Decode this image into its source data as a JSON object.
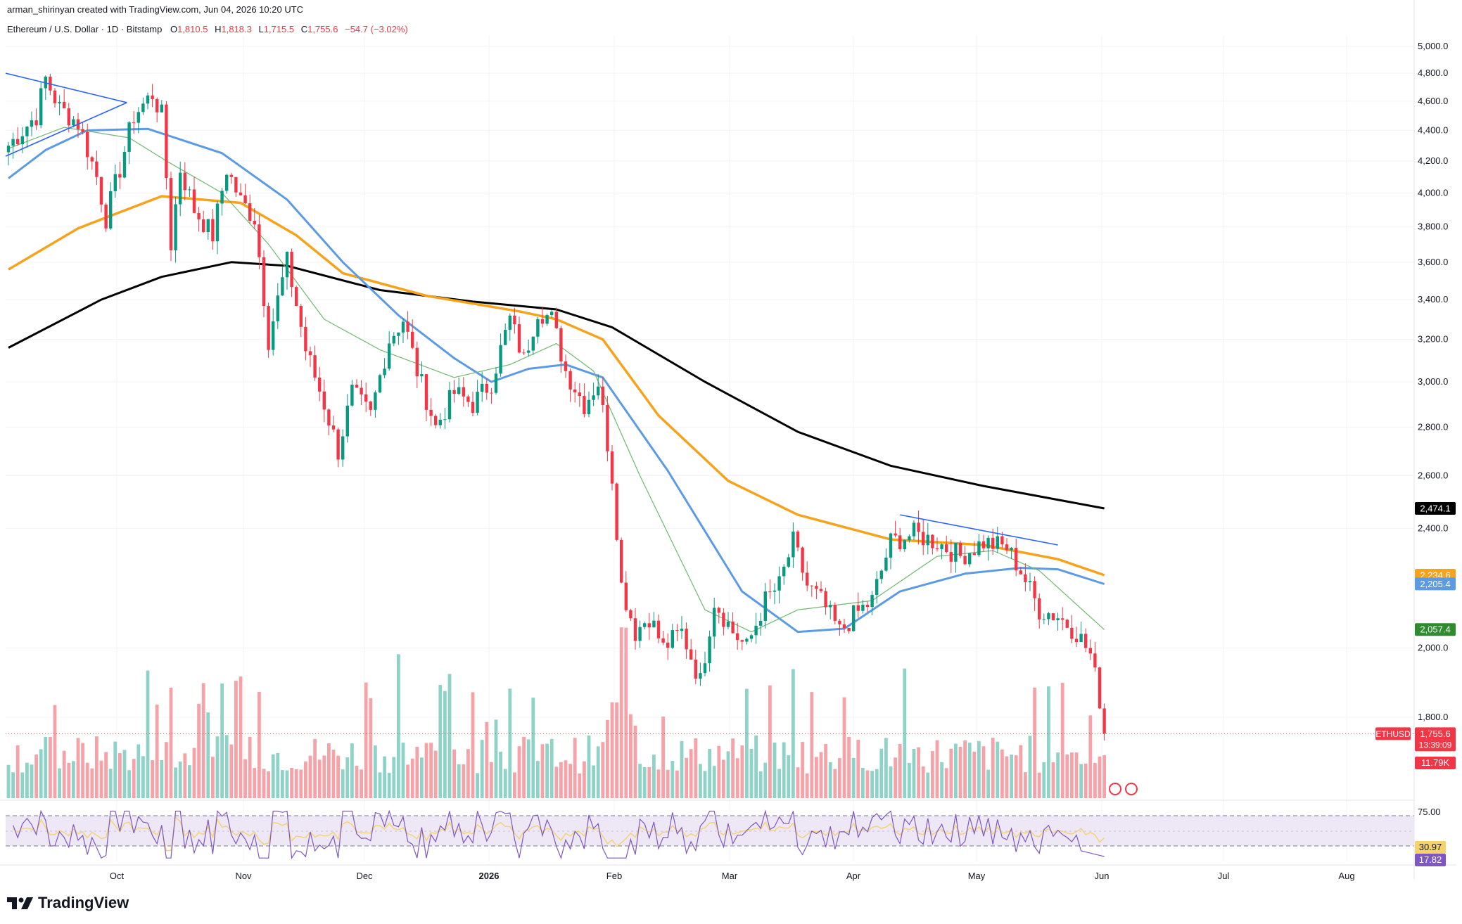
{
  "header": {
    "credit": "arman_shirinyan created with TradingView.com, Jun 04, 2026 10:20 UTC",
    "symbol": "Ethereum / U.S. Dollar · 1D · Bitstamp",
    "ohlc": [
      {
        "label": "O",
        "value": "1,810.5"
      },
      {
        "label": "H",
        "value": "1,818.3"
      },
      {
        "label": "L",
        "value": "1,715.5"
      },
      {
        "label": "C",
        "value": "1,755.6"
      },
      {
        "label": "",
        "value": "−54.7 (−3.02%)"
      }
    ]
  },
  "brand": {
    "name": "TradingView"
  },
  "colors": {
    "up": "#089981",
    "down": "#f23645",
    "vol_up": "#8fd3c8",
    "vol_down": "#f5a3a9",
    "ma_black": "#000000",
    "ma_orange": "#f7a21b",
    "ma_blue": "#5b9be6",
    "ma_green": "#6fb86f",
    "rsi_line": "#7e57c2",
    "rsi_ma": "#f5d36a",
    "rsi_band": "#ede7f6"
  },
  "chart_data": {
    "type": "candlestick",
    "x_labels": [
      "Oct",
      "Nov",
      "Dec",
      "2026",
      "Feb",
      "Mar",
      "Apr",
      "May",
      "Jun",
      "Jul",
      "Aug"
    ],
    "y_ticks": [
      "5,000.0",
      "4,800.0",
      "4,600.0",
      "4,400.0",
      "4,200.0",
      "4,000.0",
      "3,800.0",
      "3,600.0",
      "3,400.0",
      "3,200.0",
      "3,000.0",
      "2,800.0",
      "2,600.0",
      "2,400.0",
      "2,000.0",
      "1,800.0"
    ],
    "ylim": [
      1560,
      5080
    ],
    "anchors": [
      {
        "t": 0,
        "p": 4300
      },
      {
        "t": 6,
        "p": 4500
      },
      {
        "t": 8,
        "p": 4760
      },
      {
        "t": 11,
        "p": 4550
      },
      {
        "t": 15,
        "p": 4450
      },
      {
        "t": 19,
        "p": 4100
      },
      {
        "t": 21,
        "p": 3850
      },
      {
        "t": 24,
        "p": 4150
      },
      {
        "t": 27,
        "p": 4500
      },
      {
        "t": 31,
        "p": 4650
      },
      {
        "t": 33,
        "p": 4500
      },
      {
        "t": 35,
        "p": 3700
      },
      {
        "t": 37,
        "p": 4150
      },
      {
        "t": 40,
        "p": 3900
      },
      {
        "t": 44,
        "p": 3750
      },
      {
        "t": 47,
        "p": 4150
      },
      {
        "t": 50,
        "p": 3950
      },
      {
        "t": 53,
        "p": 3850
      },
      {
        "t": 56,
        "p": 3200
      },
      {
        "t": 60,
        "p": 3600
      },
      {
        "t": 64,
        "p": 3150
      },
      {
        "t": 68,
        "p": 2900
      },
      {
        "t": 71,
        "p": 2700
      },
      {
        "t": 74,
        "p": 2950
      },
      {
        "t": 78,
        "p": 2850
      },
      {
        "t": 82,
        "p": 3200
      },
      {
        "t": 85,
        "p": 3300
      },
      {
        "t": 88,
        "p": 3050
      },
      {
        "t": 92,
        "p": 2800
      },
      {
        "t": 96,
        "p": 2950
      },
      {
        "t": 100,
        "p": 2900
      },
      {
        "t": 104,
        "p": 3000
      },
      {
        "t": 108,
        "p": 3300
      },
      {
        "t": 111,
        "p": 3100
      },
      {
        "t": 114,
        "p": 3350
      },
      {
        "t": 117,
        "p": 3300
      },
      {
        "t": 120,
        "p": 3050
      },
      {
        "t": 124,
        "p": 2900
      },
      {
        "t": 127,
        "p": 3000
      },
      {
        "t": 130,
        "p": 2600
      },
      {
        "t": 132,
        "p": 2200
      },
      {
        "t": 135,
        "p": 2050
      },
      {
        "t": 138,
        "p": 2100
      },
      {
        "t": 141,
        "p": 2000
      },
      {
        "t": 145,
        "p": 2050
      },
      {
        "t": 149,
        "p": 1900
      },
      {
        "t": 152,
        "p": 2150
      },
      {
        "t": 156,
        "p": 2050
      },
      {
        "t": 159,
        "p": 2000
      },
      {
        "t": 163,
        "p": 2150
      },
      {
        "t": 166,
        "p": 2200
      },
      {
        "t": 169,
        "p": 2350
      },
      {
        "t": 172,
        "p": 2200
      },
      {
        "t": 175,
        "p": 2150
      },
      {
        "t": 179,
        "p": 2050
      },
      {
        "t": 182,
        "p": 2100
      },
      {
        "t": 186,
        "p": 2150
      },
      {
        "t": 190,
        "p": 2350
      },
      {
        "t": 195,
        "p": 2380
      },
      {
        "t": 200,
        "p": 2350
      },
      {
        "t": 205,
        "p": 2300
      },
      {
        "t": 210,
        "p": 2350
      },
      {
        "t": 215,
        "p": 2330
      },
      {
        "t": 218,
        "p": 2250
      },
      {
        "t": 222,
        "p": 2120
      },
      {
        "t": 226,
        "p": 2100
      },
      {
        "t": 230,
        "p": 2050
      },
      {
        "t": 233,
        "p": 1980
      },
      {
        "t": 235,
        "p": 1850
      },
      {
        "t": 236,
        "p": 1756
      }
    ],
    "moving_averages": [
      {
        "color_key": "ma_black",
        "width": 3,
        "points": [
          [
            0,
            3160
          ],
          [
            20,
            3400
          ],
          [
            33,
            3520
          ],
          [
            48,
            3600
          ],
          [
            60,
            3580
          ],
          [
            80,
            3450
          ],
          [
            100,
            3390
          ],
          [
            118,
            3350
          ],
          [
            130,
            3260
          ],
          [
            150,
            3000
          ],
          [
            170,
            2780
          ],
          [
            190,
            2640
          ],
          [
            210,
            2560
          ],
          [
            236,
            2474
          ]
        ]
      },
      {
        "color_key": "ma_orange",
        "width": 3.5,
        "points": [
          [
            0,
            3560
          ],
          [
            15,
            3790
          ],
          [
            33,
            3980
          ],
          [
            50,
            3940
          ],
          [
            62,
            3750
          ],
          [
            72,
            3540
          ],
          [
            90,
            3420
          ],
          [
            110,
            3340
          ],
          [
            118,
            3300
          ],
          [
            128,
            3200
          ],
          [
            140,
            2850
          ],
          [
            155,
            2580
          ],
          [
            170,
            2450
          ],
          [
            190,
            2360
          ],
          [
            210,
            2340
          ],
          [
            226,
            2290
          ],
          [
            236,
            2235
          ]
        ]
      },
      {
        "color_key": "ma_blue",
        "width": 3,
        "points": [
          [
            0,
            4090
          ],
          [
            8,
            4270
          ],
          [
            17,
            4400
          ],
          [
            30,
            4410
          ],
          [
            46,
            4250
          ],
          [
            60,
            3960
          ],
          [
            72,
            3600
          ],
          [
            84,
            3320
          ],
          [
            96,
            3110
          ],
          [
            104,
            3000
          ],
          [
            112,
            3060
          ],
          [
            120,
            3080
          ],
          [
            128,
            3020
          ],
          [
            142,
            2620
          ],
          [
            158,
            2180
          ],
          [
            170,
            2050
          ],
          [
            180,
            2060
          ],
          [
            192,
            2180
          ],
          [
            206,
            2240
          ],
          [
            218,
            2260
          ],
          [
            226,
            2255
          ],
          [
            236,
            2205
          ]
        ]
      },
      {
        "color_key": "ma_green",
        "width": 1.2,
        "points": [
          [
            0,
            4280
          ],
          [
            12,
            4420
          ],
          [
            26,
            4350
          ],
          [
            34,
            4200
          ],
          [
            46,
            4000
          ],
          [
            56,
            3700
          ],
          [
            68,
            3300
          ],
          [
            80,
            3150
          ],
          [
            96,
            3020
          ],
          [
            108,
            3080
          ],
          [
            118,
            3180
          ],
          [
            126,
            3050
          ],
          [
            136,
            2600
          ],
          [
            150,
            2120
          ],
          [
            160,
            2050
          ],
          [
            170,
            2120
          ],
          [
            186,
            2150
          ],
          [
            200,
            2300
          ],
          [
            212,
            2320
          ],
          [
            222,
            2250
          ],
          [
            236,
            2057
          ]
        ]
      }
    ],
    "price_labels": [
      {
        "text": "2,474.1",
        "bg": "#000000",
        "y": 2474.1
      },
      {
        "text": "2,234.6",
        "bg": "#f7a21b",
        "y": 2234.6
      },
      {
        "text": "2,205.4",
        "bg": "#5b9be6",
        "y": 2205.4
      },
      {
        "text": "2,057.4",
        "bg": "#2e8b2e",
        "y": 2057.4
      }
    ],
    "last_price": {
      "symbol": "ETHUSD",
      "text": "1,755.6",
      "countdown": "13:39:09",
      "y": 1755.6
    },
    "volume_label": "11.79K",
    "rsi": {
      "ticks": [
        "75.00"
      ],
      "upper": 70,
      "lower": 30,
      "value_ma": "30.97",
      "value": "17.82"
    },
    "triangle_lines": [
      [
        [
          0,
          4800
        ],
        [
          24,
          4590
        ]
      ],
      [
        [
          0,
          4230
        ],
        [
          24,
          4590
        ]
      ]
    ],
    "resistance_line": [
      [
        192,
        2450
      ],
      [
        226,
        2340
      ]
    ]
  }
}
